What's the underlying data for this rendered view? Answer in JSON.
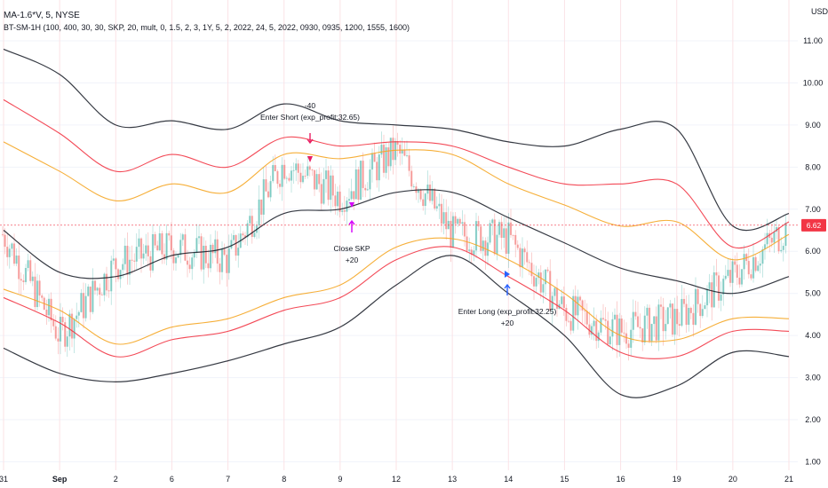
{
  "legend": {
    "symbol_line": "MA-1.6*V, 5, NYSE",
    "strategy_line": "BT-SM-1H (100, 400, 30, 30, SKP, 20, mult, 0, 1.5, 2, 3, 1Y, 5, 2, 2022, 24, 5, 2022, 0930, 0935, 1200, 1555, 1600)"
  },
  "price_axis": {
    "currency": "USD",
    "ticks": [
      "11.00",
      "10.00",
      "9.00",
      "8.00",
      "7.00",
      "6.00",
      "5.00",
      "4.00",
      "3.00",
      "2.00",
      "1.00"
    ],
    "current_price": "6.62"
  },
  "time_axis": {
    "ticks": [
      "31",
      "Sep",
      "2",
      "6",
      "7",
      "8",
      "9",
      "12",
      "13",
      "14",
      "15",
      "16",
      "19",
      "20",
      "21"
    ]
  },
  "annotations": {
    "enter_short_qty": "-40",
    "enter_short_label": "Enter Short (exp_profit:32.65)",
    "close_label": "Close SKP",
    "close_qty": "+20",
    "enter_long_label": "Enter Long (exp_profit:32.25)",
    "enter_long_qty": "+20"
  },
  "chart_data": {
    "type": "line",
    "x": [
      "31",
      "Sep",
      "2",
      "6",
      "7",
      "8",
      "9",
      "12",
      "13",
      "14",
      "15",
      "16",
      "19",
      "20",
      "21"
    ],
    "ylim": [
      0.8,
      11.8
    ],
    "series": [
      {
        "values": [
          10.8,
          10.2,
          9.0,
          9.1,
          8.9,
          9.5,
          9.1,
          9.0,
          8.9,
          8.6,
          8.5,
          8.9,
          8.9,
          6.6,
          6.9
        ],
        "color": "#131722"
      },
      {
        "values": [
          9.6,
          8.8,
          7.9,
          8.3,
          8.0,
          8.7,
          8.5,
          8.6,
          8.5,
          8.0,
          7.6,
          7.6,
          7.6,
          6.1,
          6.7
        ],
        "color": "#f23645"
      },
      {
        "values": [
          8.6,
          7.9,
          7.2,
          7.6,
          7.4,
          8.3,
          8.2,
          8.4,
          8.3,
          7.6,
          7.1,
          6.6,
          6.7,
          5.8,
          6.4
        ],
        "color": "#f5a623"
      },
      {
        "values": [
          6.5,
          5.5,
          5.4,
          5.9,
          6.1,
          6.9,
          7.0,
          7.4,
          7.4,
          6.8,
          6.2,
          5.6,
          5.3,
          5.0,
          5.4
        ],
        "color": "#131722"
      },
      {
        "values": [
          5.1,
          4.6,
          3.8,
          4.2,
          4.4,
          4.9,
          5.2,
          6.1,
          6.3,
          5.8,
          5.0,
          4.0,
          3.9,
          4.4,
          4.4
        ],
        "color": "#f5a623"
      },
      {
        "values": [
          4.9,
          4.3,
          3.5,
          3.9,
          4.1,
          4.6,
          4.9,
          5.8,
          6.1,
          5.4,
          4.6,
          3.6,
          3.5,
          4.1,
          4.1
        ],
        "color": "#f23645"
      },
      {
        "values": [
          3.7,
          3.1,
          2.9,
          3.1,
          3.4,
          3.8,
          4.2,
          5.2,
          5.9,
          5.0,
          4.0,
          2.6,
          2.8,
          3.6,
          3.5
        ],
        "color": "#131722"
      },
      {
        "values": [
          6.4,
          4.0,
          5.7,
          6.1,
          5.8,
          8.1,
          7.3,
          8.4,
          6.4,
          6.3,
          4.6,
          4.1,
          4.4,
          5.4,
          6.6
        ],
        "color": "#26a69a"
      }
    ]
  }
}
